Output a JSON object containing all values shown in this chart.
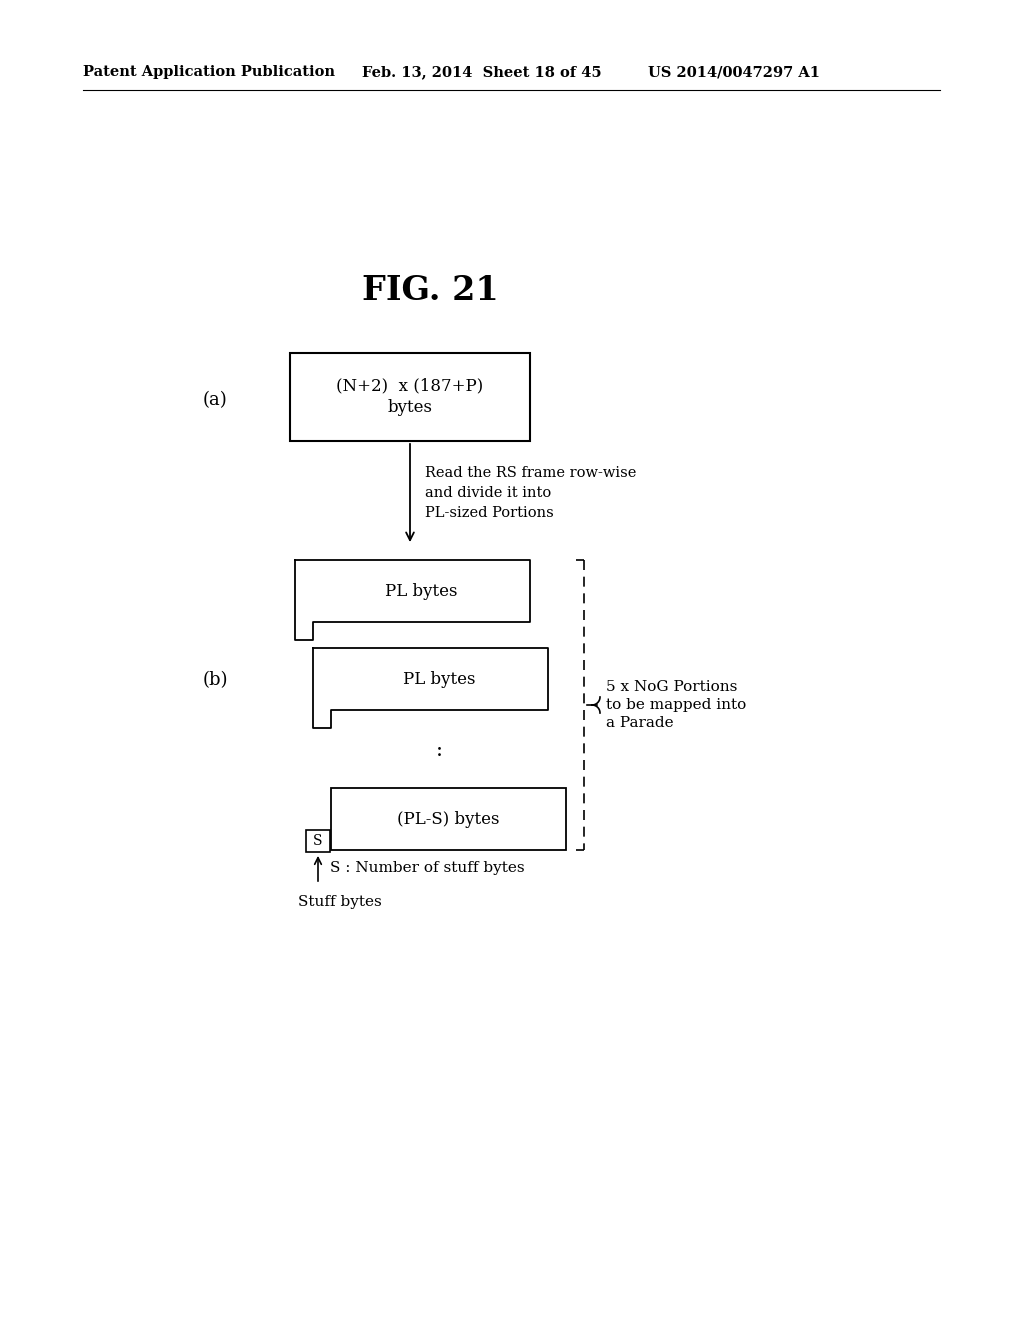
{
  "background_color": "#ffffff",
  "header_left": "Patent Application Publication",
  "header_mid": "Feb. 13, 2014  Sheet 18 of 45",
  "header_right": "US 2014/0047297 A1",
  "fig_title": "FIG. 21",
  "label_a": "(a)",
  "label_b": "(b)",
  "box_a_text_line1": "(N+2)  x (187+P)",
  "box_a_text_line2": "bytes",
  "arrow_label_line1": "Read the RS frame row-wise",
  "arrow_label_line2": "and divide it into",
  "arrow_label_line3": "PL-sized Portions",
  "box_b1_text": "PL bytes",
  "box_b2_text": "PL bytes",
  "box_b3_text": "(PL-S) bytes",
  "s_box_text": "S",
  "s_label": "S : Number of stuff bytes",
  "stuff_label": "Stuff bytes",
  "brace_label_line1": "5 x NoG Portions",
  "brace_label_line2": "to be mapped into",
  "brace_label_line3": "a Parade"
}
